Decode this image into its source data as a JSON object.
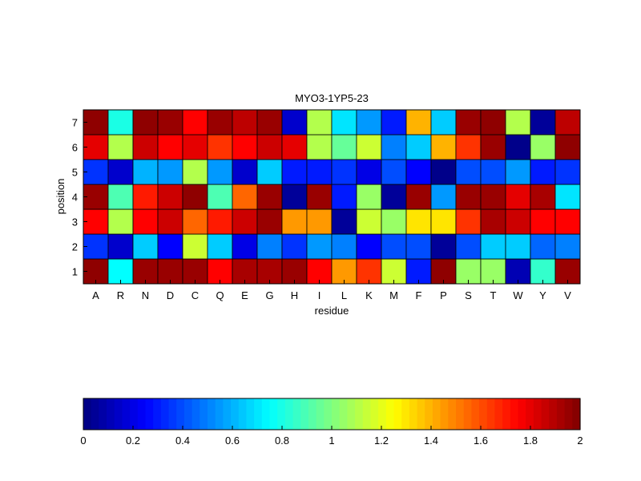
{
  "chart_data": {
    "type": "heatmap",
    "title": "MYO3-1YP5-23",
    "xlabel": "residue",
    "ylabel": "position",
    "x_categories": [
      "A",
      "R",
      "N",
      "D",
      "C",
      "Q",
      "E",
      "G",
      "H",
      "I",
      "L",
      "K",
      "M",
      "F",
      "P",
      "S",
      "T",
      "W",
      "Y",
      "V"
    ],
    "y_categories": [
      "1",
      "2",
      "3",
      "4",
      "5",
      "6",
      "7"
    ],
    "values": [
      [
        1.97,
        0.75,
        1.95,
        1.95,
        1.95,
        1.75,
        1.92,
        1.92,
        1.95,
        1.75,
        1.45,
        1.65,
        1.15,
        0.3,
        1.97,
        1.05,
        1.05,
        0.1,
        0.85,
        1.95
      ],
      [
        0.35,
        0.15,
        0.65,
        0.25,
        1.15,
        0.65,
        0.2,
        0.5,
        0.35,
        0.55,
        0.5,
        0.25,
        0.4,
        0.4,
        0.05,
        0.4,
        0.65,
        0.65,
        0.45,
        0.5
      ],
      [
        1.75,
        1.1,
        1.75,
        1.85,
        1.55,
        1.7,
        1.85,
        1.95,
        1.45,
        1.45,
        0.05,
        1.15,
        1.05,
        1.3,
        1.3,
        1.65,
        1.92,
        1.85,
        1.75,
        1.75
      ],
      [
        1.95,
        0.9,
        1.7,
        1.85,
        1.97,
        0.9,
        1.55,
        1.95,
        0.05,
        1.95,
        0.3,
        1.05,
        0.05,
        1.95,
        0.55,
        1.95,
        1.95,
        1.8,
        1.92,
        0.7
      ],
      [
        0.35,
        0.15,
        0.6,
        0.55,
        1.1,
        0.55,
        0.15,
        0.65,
        0.3,
        0.3,
        0.35,
        0.2,
        0.4,
        0.25,
        0.02,
        0.4,
        0.4,
        0.55,
        0.3,
        0.35
      ],
      [
        1.8,
        1.1,
        1.85,
        1.75,
        1.8,
        1.65,
        1.75,
        1.85,
        1.8,
        1.1,
        0.95,
        1.15,
        0.5,
        0.65,
        1.4,
        1.65,
        1.95,
        0.02,
        1.05,
        1.97
      ],
      [
        1.97,
        0.8,
        1.97,
        1.95,
        1.75,
        1.95,
        1.88,
        1.95,
        0.15,
        1.1,
        0.7,
        0.55,
        0.3,
        1.4,
        0.65,
        1.95,
        1.97,
        1.1,
        0.05,
        1.88
      ]
    ],
    "zlim": [
      0,
      2
    ],
    "colormap": "jet",
    "colorbar": {
      "location": "bottom",
      "ticks": [
        0,
        0.2,
        0.4,
        0.6,
        0.8,
        1,
        1.2,
        1.4,
        1.6,
        1.8,
        2
      ],
      "tick_labels": [
        "0",
        "0.2",
        "0.4",
        "0.6",
        "0.8",
        "1",
        "1.2",
        "1.4",
        "1.6",
        "1.8",
        "2"
      ]
    }
  }
}
